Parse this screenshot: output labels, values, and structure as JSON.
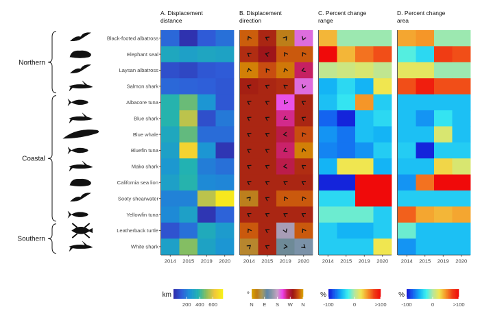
{
  "chart_data": {
    "type": "heatmap",
    "years": [
      "2014",
      "2015",
      "2019",
      "2020"
    ],
    "species": [
      "Black-footed albatross",
      "Elephant seal",
      "Laysan albatross",
      "Salmon shark",
      "Albacore tuna",
      "Blue shark",
      "Blue whale",
      "Bluefin tuna",
      "Mako shark",
      "California sea lion",
      "Sooty shearwater",
      "Yellowfin tuna",
      "Leatherback turtle",
      "White shark"
    ],
    "groups": [
      {
        "label": "Northern",
        "species": [
          "Black-footed albatross",
          "Elephant seal",
          "Laysan albatross",
          "Salmon shark"
        ]
      },
      {
        "label": "Coastal",
        "species": [
          "Albacore tuna",
          "Blue shark",
          "Blue whale",
          "Bluefin tuna",
          "Mako shark",
          "California sea lion",
          "Sooty shearwater",
          "Yellowfin tuna"
        ]
      },
      {
        "label": "Southern",
        "species": [
          "Leatherback turtle",
          "White shark"
        ]
      }
    ],
    "panels": [
      {
        "title_line1": "A. Displacement",
        "title_line2": "distance",
        "colormap": "distance",
        "vmin": 0,
        "vmax": 750,
        "values": [
          [
            150,
            20,
            120,
            170
          ],
          [
            330,
            300,
            320,
            310
          ],
          [
            90,
            70,
            110,
            120
          ],
          [
            150,
            140,
            130,
            110
          ],
          [
            380,
            460,
            260,
            110
          ],
          [
            380,
            560,
            90,
            190
          ],
          [
            330,
            450,
            160,
            160
          ],
          [
            300,
            660,
            260,
            30
          ],
          [
            270,
            370,
            200,
            170
          ],
          [
            300,
            380,
            230,
            220
          ],
          [
            210,
            210,
            560,
            720
          ],
          [
            230,
            300,
            30,
            140
          ],
          [
            100,
            170,
            340,
            280
          ],
          [
            300,
            490,
            310,
            260
          ]
        ]
      },
      {
        "title_line1": "B. Displacement",
        "title_line2": "direction",
        "colormap": "direction",
        "vmin": 0,
        "vmax": 360,
        "values": [
          [
            332,
            300,
            40,
            200
          ],
          [
            305,
            285,
            330,
            330
          ],
          [
            345,
            325,
            342,
            250
          ],
          [
            295,
            300,
            305,
            200
          ],
          [
            300,
            300,
            210,
            300
          ],
          [
            300,
            300,
            240,
            300
          ],
          [
            300,
            300,
            262,
            325
          ],
          [
            300,
            300,
            248,
            345
          ],
          [
            300,
            300,
            260,
            305
          ],
          [
            300,
            300,
            300,
            300
          ],
          [
            42,
            300,
            330,
            330
          ],
          [
            300,
            300,
            300,
            300
          ],
          [
            330,
            300,
            160,
            330
          ],
          [
            50,
            300,
            100,
            130
          ]
        ]
      },
      {
        "title_line1": "C. Percent change",
        "title_line2": "range",
        "colormap": "percent",
        "vmin": -100,
        "vmax": 100,
        "values": [
          [
            40,
            -5,
            -5,
            -5
          ],
          [
            100,
            40,
            60,
            70
          ],
          [
            5,
            10,
            15,
            5
          ],
          [
            -50,
            -35,
            -50,
            25
          ],
          [
            -45,
            -30,
            50,
            -40
          ],
          [
            -75,
            -95,
            -45,
            -35
          ],
          [
            -60,
            -70,
            -45,
            -50
          ],
          [
            -65,
            -70,
            -60,
            -40
          ],
          [
            -50,
            25,
            25,
            -50
          ],
          [
            -95,
            -95,
            100,
            100
          ],
          [
            -35,
            -35,
            100,
            100
          ],
          [
            -15,
            -15,
            -15,
            -40
          ],
          [
            -40,
            -50,
            -50,
            -40
          ],
          [
            -40,
            -40,
            -40,
            25
          ]
        ]
      },
      {
        "title_line1": "D. Percent change",
        "title_line2": "area",
        "colormap": "percent",
        "vmin": -100,
        "vmax": 100,
        "values": [
          [
            45,
            50,
            -5,
            -5
          ],
          [
            -20,
            -35,
            75,
            70
          ],
          [
            20,
            20,
            -5,
            -5
          ],
          [
            70,
            90,
            70,
            70
          ],
          [
            -45,
            -45,
            -45,
            -45
          ],
          [
            -45,
            -60,
            -30,
            -45
          ],
          [
            -45,
            -45,
            15,
            -45
          ],
          [
            -40,
            -95,
            -40,
            -40
          ],
          [
            -45,
            -45,
            30,
            15
          ],
          [
            -60,
            60,
            100,
            100
          ],
          [
            -40,
            -40,
            -40,
            -40
          ],
          [
            65,
            45,
            40,
            45
          ],
          [
            -15,
            -45,
            -45,
            -45
          ],
          [
            -60,
            -45,
            -45,
            -45
          ]
        ]
      }
    ],
    "legends": [
      {
        "unit": "km",
        "tick_labels": [
          "200",
          "400",
          "600"
        ],
        "tick_values": [
          200,
          400,
          600
        ],
        "colormap": "distance",
        "vmin": 0,
        "vmax": 750
      },
      {
        "unit": "°",
        "tick_labels": [
          "N",
          "E",
          "S",
          "W",
          "N"
        ],
        "tick_values": [
          0,
          90,
          180,
          270,
          360
        ],
        "colormap": "direction",
        "vmin": 0,
        "vmax": 360
      },
      {
        "unit": "%",
        "tick_labels": [
          "-100",
          "0",
          ">100"
        ],
        "tick_values": [
          -100,
          0,
          100
        ],
        "colormap": "percent",
        "vmin": -100,
        "vmax": 100
      },
      {
        "unit": "%",
        "tick_labels": [
          "-100",
          "0",
          ">100"
        ],
        "tick_values": [
          -100,
          0,
          100
        ],
        "colormap": "percent",
        "vmin": -100,
        "vmax": 100
      }
    ],
    "colormaps": {
      "distance": [
        "#2f2aa7",
        "#2f5dd9",
        "#1b93d6",
        "#22b3b0",
        "#8cbf5c",
        "#f1c73a",
        "#f7f215"
      ],
      "direction": [
        "#d9a600",
        "#c07a10",
        "#a89a5d",
        "#5e86a8",
        "#8e99a8",
        "#c8a2c8",
        "#ee42ee",
        "#c41e5a",
        "#9b1414",
        "#c74a10",
        "#d9a600"
      ],
      "percent": [
        "#1414d6",
        "#1464f0",
        "#14b4f5",
        "#3cf0f0",
        "#b4e6a0",
        "#f0e650",
        "#f59628",
        "#f03c14",
        "#f00a0a"
      ]
    }
  }
}
